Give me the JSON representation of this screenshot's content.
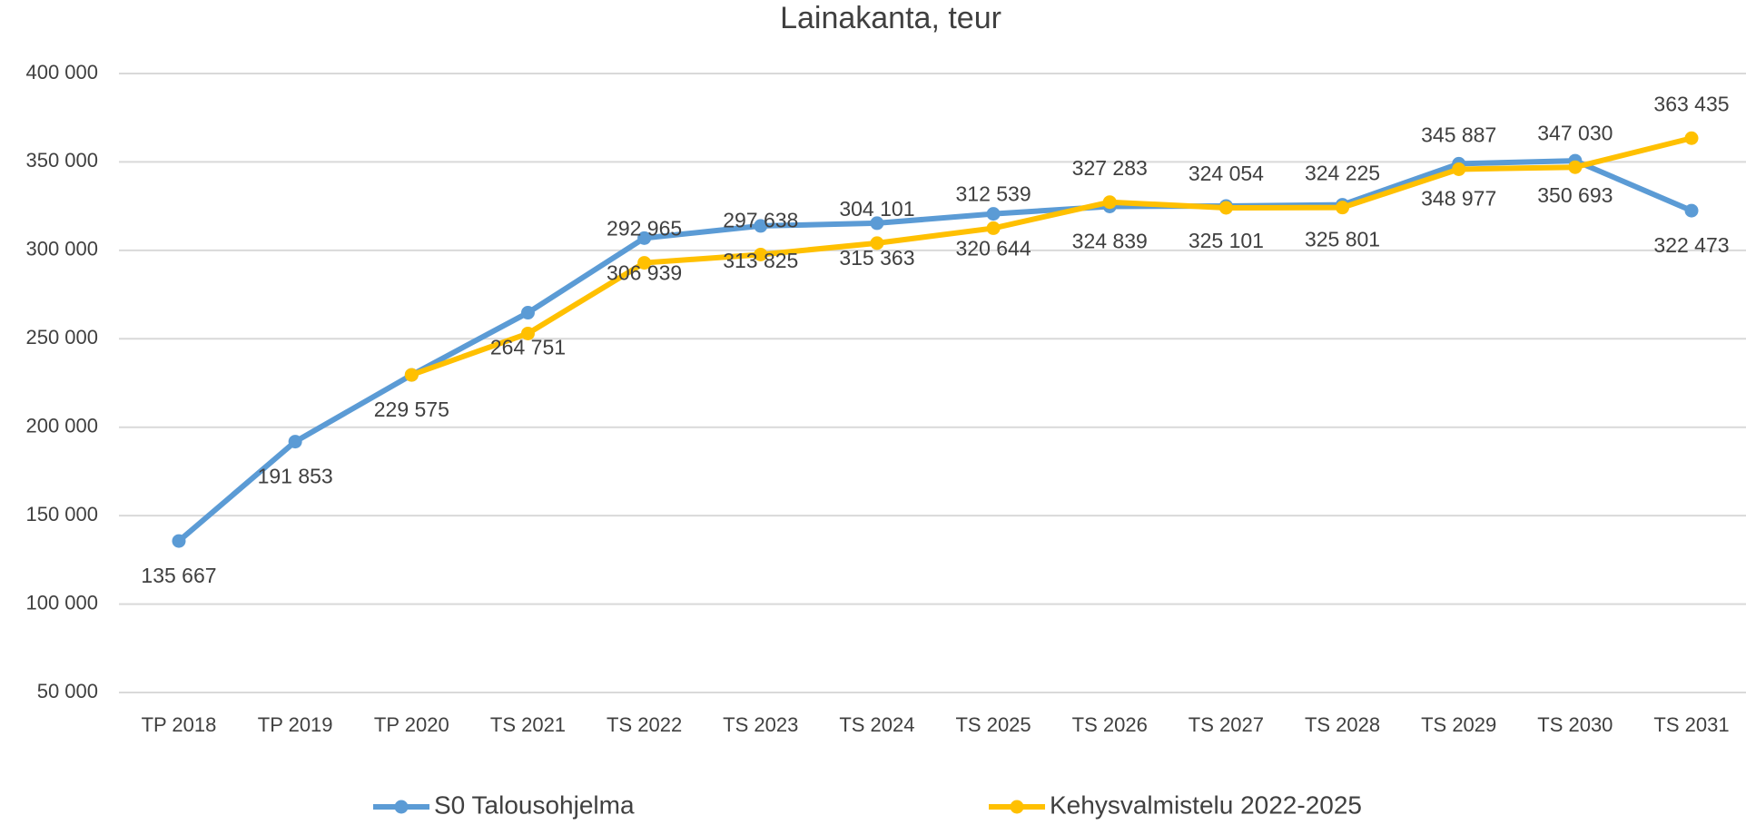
{
  "chart_data": {
    "type": "line",
    "title": "Lainakanta, teur",
    "categories": [
      "TP 2018",
      "TP 2019",
      "TP 2020",
      "TS 2021",
      "TS 2022",
      "TS 2023",
      "TS 2024",
      "TS 2025",
      "TS 2026",
      "TS 2027",
      "TS 2028",
      "TS 2029",
      "TS 2030",
      "TS 2031"
    ],
    "series": [
      {
        "name": "S0 Talousohjelma",
        "color": "#5b9bd5",
        "values": [
          135667,
          191853,
          229575,
          264751,
          306939,
          313825,
          315363,
          320644,
          324839,
          325101,
          325801,
          348977,
          350693,
          322473
        ],
        "value_labels": [
          "135 667",
          "191 853",
          "229 575",
          "264 751",
          "306 939",
          "313 825",
          "315 363",
          "320 644",
          "324 839",
          "325 101",
          "325 801",
          "348 977",
          "350 693",
          "322 473"
        ]
      },
      {
        "name": "Kehysvalmistelu 2022-2025",
        "color": "#ffc000",
        "values": [
          null,
          null,
          229575,
          253000,
          292965,
          297638,
          304101,
          312539,
          327283,
          324054,
          324225,
          345887,
          347030,
          363435
        ],
        "value_labels": [
          null,
          null,
          null,
          null,
          "292 965",
          "297 638",
          "304 101",
          "312 539",
          "327 283",
          "324 054",
          "324 225",
          "345 887",
          "347 030",
          "363 435"
        ]
      }
    ],
    "ylim": [
      50000,
      400000
    ],
    "yticks": [
      {
        "value": 50000,
        "label": "50 000"
      },
      {
        "value": 100000,
        "label": "100 000"
      },
      {
        "value": 150000,
        "label": "150 000"
      },
      {
        "value": 200000,
        "label": "200 000"
      },
      {
        "value": 250000,
        "label": "250 000"
      },
      {
        "value": 300000,
        "label": "300 000"
      },
      {
        "value": 350000,
        "label": "350 000"
      },
      {
        "value": 400000,
        "label": "400 000"
      }
    ],
    "grid": true,
    "legend": "bottom"
  }
}
